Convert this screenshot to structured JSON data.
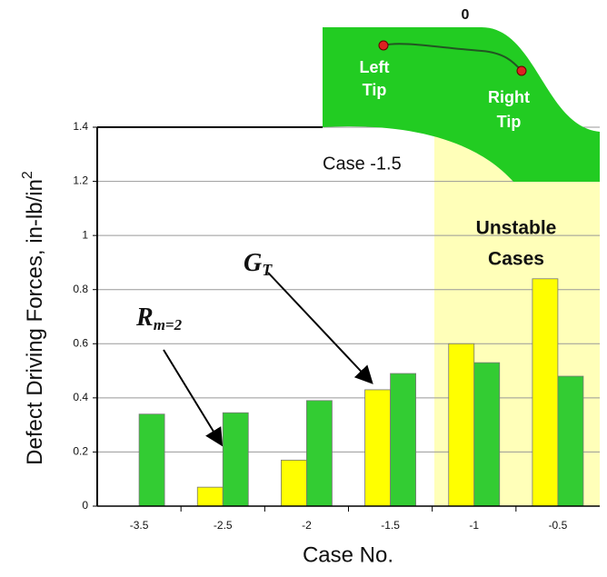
{
  "chart_data": {
    "type": "bar",
    "categories": [
      "-3.5",
      "-2.5",
      "-2",
      "-1.5",
      "-1",
      "-0.5"
    ],
    "series": [
      {
        "color": "#ffff00",
        "values": [
          0,
          0.07,
          0.17,
          0.43,
          0.6,
          0.84
        ]
      },
      {
        "color": "#33cc33",
        "values": [
          0.34,
          0.345,
          0.39,
          0.49,
          0.53,
          0.48
        ]
      }
    ],
    "ylim": [
      0,
      1.4
    ],
    "yticks": [
      0,
      0.2,
      0.4,
      0.6,
      0.8,
      1,
      1.2,
      1.4
    ],
    "grid": true,
    "xlabel": "Case No.",
    "ylabel": {
      "text": "Defect Driving Forces, in-lb/in",
      "superscript": "2"
    },
    "annotations": [
      {
        "text": "G",
        "subscript": "T"
      },
      {
        "text": "R",
        "subscript": "m=2"
      }
    ],
    "region_label": [
      "Unstable",
      "Cases"
    ],
    "inset": {
      "zero": "0",
      "left": [
        "Left",
        "Tip"
      ],
      "right": [
        "Right",
        "Tip"
      ],
      "case": "Case -1.5"
    }
  }
}
